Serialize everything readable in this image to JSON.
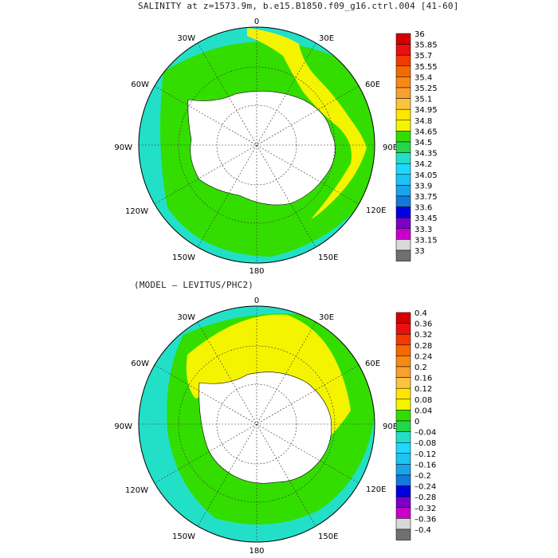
{
  "top_panel": {
    "title": "SALINITY at z=1573.9m, b.e15.B1850.f09_g16.ctrl.004 [41-60]",
    "lon_labels": {
      "l0": "0",
      "l30e": "30E",
      "l60e": "60E",
      "l90e": "90E",
      "l120e": "120E",
      "l150e": "150E",
      "l180": "180",
      "l150w": "150W",
      "l120w": "120W",
      "l90w": "90W",
      "l60w": "60W",
      "l30w": "30W"
    },
    "colorbar": {
      "labels": [
        "36",
        "35.85",
        "35.7",
        "35.55",
        "35.4",
        "35.25",
        "35.1",
        "34.95",
        "34.8",
        "34.65",
        "34.5",
        "34.35",
        "34.2",
        "34.05",
        "33.9",
        "33.75",
        "33.6",
        "33.45",
        "33.3",
        "33.15",
        "33"
      ],
      "colors": [
        "#d40000",
        "#e81010",
        "#f23a00",
        "#f46a00",
        "#f68a14",
        "#f8a030",
        "#fbc43c",
        "#ffe600",
        "#f4f400",
        "#33dd00",
        "#22d84a",
        "#22e0c8",
        "#1ed8ff",
        "#1cc4f4",
        "#1aa4ec",
        "#1478dc",
        "#0000e0",
        "#7a00c8",
        "#c800c8",
        "#d8d8d8",
        "#707070"
      ]
    },
    "regions": {
      "ocean_main": "#33dd00",
      "ocean_edge": "#22e0c8",
      "ocean_yellow": "#f4f400",
      "land": "#ffffff"
    }
  },
  "bottom_panel": {
    "title": "(MODEL – LEVITUS/PHC2)",
    "lon_labels": {
      "l0": "0",
      "l30e": "30E",
      "l60e": "60E",
      "l90e": "90E",
      "l120e": "120E",
      "l150e": "150E",
      "l180": "180",
      "l150w": "150W",
      "l120w": "120W",
      "l90w": "90W",
      "l60w": "60W",
      "l30w": "30W"
    },
    "colorbar": {
      "labels": [
        "0.4",
        "0.36",
        "0.32",
        "0.28",
        "0.24",
        "0.2",
        "0.16",
        "0.12",
        "0.08",
        "0.04",
        "0",
        "–0.04",
        "–0.08",
        "–0.12",
        "–0.16",
        "–0.2",
        "–0.24",
        "–0.28",
        "–0.32",
        "–0.36",
        "–0.4"
      ],
      "colors": [
        "#d40000",
        "#e81010",
        "#f23a00",
        "#f46a00",
        "#f68a14",
        "#f8a030",
        "#fbc43c",
        "#ffe600",
        "#f4f400",
        "#33dd00",
        "#22d84a",
        "#22e0c8",
        "#1ed8ff",
        "#1cc4f4",
        "#1aa4ec",
        "#1478dc",
        "#0000e0",
        "#7a00c8",
        "#c800c8",
        "#d8d8d8",
        "#707070"
      ]
    },
    "regions": {
      "ocean_main": "#33dd00",
      "ocean_edge": "#22e0c8",
      "ocean_yellow": "#f4f400",
      "land": "#ffffff"
    }
  }
}
